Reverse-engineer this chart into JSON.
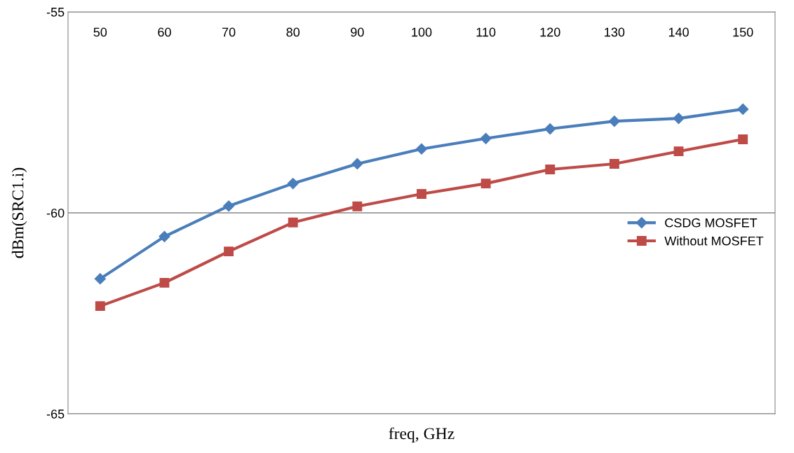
{
  "chart_data": {
    "type": "line",
    "xlabel": "freq, GHz",
    "ylabel": "dBm(SRC1.i)",
    "categories": [
      "50",
      "60",
      "70",
      "80",
      "90",
      "100",
      "110",
      "120",
      "130",
      "140",
      "150"
    ],
    "ylim": [
      -65,
      -55
    ],
    "yticks": [
      -65,
      -60,
      -55
    ],
    "grid": "y",
    "legend": "right",
    "line_style": "solid",
    "series": [
      {
        "name": "CSDG MOSFET",
        "color": "#4a7ebb",
        "marker": "diamond",
        "values": [
          -61.64,
          -60.59,
          -59.83,
          -59.27,
          -58.78,
          -58.41,
          -58.15,
          -57.91,
          -57.72,
          -57.65,
          -57.42
        ]
      },
      {
        "name": "Without MOSFET",
        "color": "#be4b48",
        "marker": "square",
        "values": [
          -62.32,
          -61.74,
          -60.96,
          -60.24,
          -59.84,
          -59.53,
          -59.27,
          -58.92,
          -58.78,
          -58.47,
          -58.17
        ]
      }
    ]
  }
}
